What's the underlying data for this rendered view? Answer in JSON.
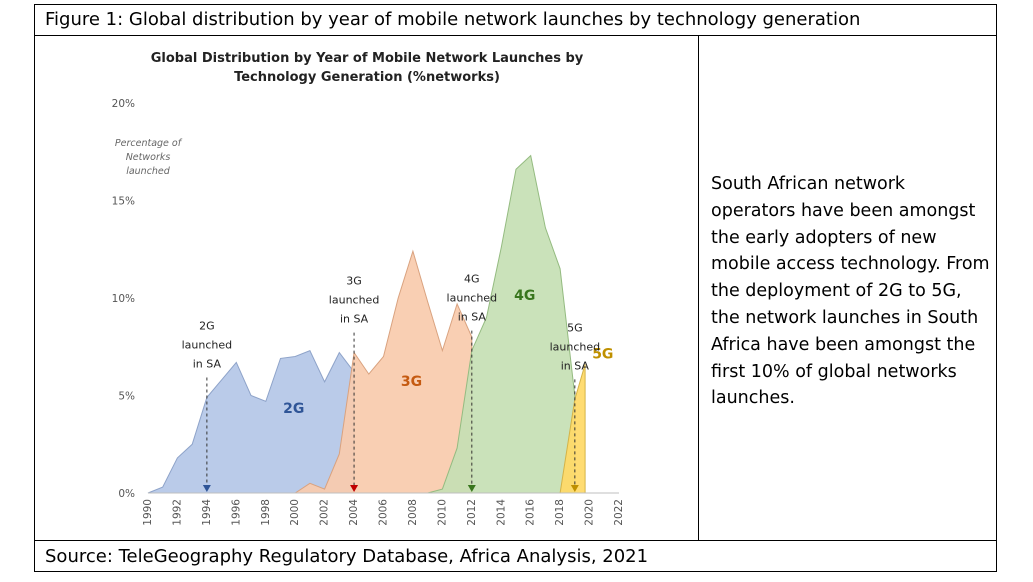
{
  "figure_title": "Figure 1: Global distribution by year of mobile network launches by technology generation",
  "source": "Source: TeleGeography Regulatory Database, Africa Analysis, 2021",
  "side_text": "South African network operators have been amongst the early adopters of new mobile access technology. From the deployment of 2G to 5G, the network launches in South Africa have been amongst the first 10% of global networks launches.",
  "chart_data": {
    "type": "area",
    "title": "Global Distribution by Year of Mobile Network Launches by Technology Generation (%networks)",
    "title_lines": [
      "Global Distribution by Year of Mobile Network Launches by",
      "Technology Generation (%networks)"
    ],
    "ylabel_lines": [
      "Percentage of",
      "Networks",
      "launched"
    ],
    "ylim": [
      0,
      20
    ],
    "yticks": [
      0,
      5,
      10,
      15,
      20
    ],
    "ytick_labels": [
      "0%",
      "5%",
      "10%",
      "15%",
      "20%"
    ],
    "xlim": [
      1990,
      2022
    ],
    "xticks": [
      1990,
      1992,
      1994,
      1996,
      1998,
      2000,
      2002,
      2004,
      2006,
      2008,
      2010,
      2012,
      2014,
      2016,
      2018,
      2020,
      2022
    ],
    "grid": false,
    "legend": "none",
    "series": [
      {
        "name": "2G",
        "color": "#b4c7e7",
        "stroke": "#8ea3c9",
        "label_color": "#2f5597",
        "label_at": [
          1999.9,
          4.1
        ],
        "x": [
          1990,
          1991,
          1992,
          1993,
          1994,
          1995,
          1996,
          1997,
          1998,
          1999,
          2000,
          2001,
          2002,
          2003,
          2004
        ],
        "y": [
          0,
          0.3,
          1.8,
          2.5,
          4.9,
          5.8,
          6.7,
          5.0,
          4.7,
          6.9,
          7.0,
          7.3,
          5.7,
          7.2,
          6.2
        ]
      },
      {
        "name": "3G",
        "color": "#f8cbad",
        "stroke": "#d9a27f",
        "label_color": "#c55a11",
        "label_at": [
          2007.9,
          5.5
        ],
        "x": [
          2000,
          2001,
          2002,
          2003,
          2004,
          2005,
          2006,
          2007,
          2008,
          2009,
          2010,
          2011,
          2012
        ],
        "y": [
          0,
          0.5,
          0.2,
          2.0,
          7.2,
          6.1,
          7.0,
          10.0,
          12.4,
          9.8,
          7.3,
          9.7,
          8.0
        ]
      },
      {
        "name": "4G",
        "color": "#c5e0b4",
        "stroke": "#94bb80",
        "label_color": "#38761d",
        "label_at": [
          2015.6,
          9.9
        ],
        "x": [
          2009,
          2010,
          2011,
          2012,
          2013,
          2014,
          2015,
          2016,
          2017,
          2018,
          2019
        ],
        "y": [
          0,
          0.2,
          2.3,
          7.3,
          9.0,
          12.6,
          16.6,
          17.3,
          13.6,
          11.5,
          5.0
        ]
      },
      {
        "name": "5G",
        "color": "#ffd966",
        "stroke": "#d4b348",
        "label_color": "#bf9000",
        "label_at": [
          2020.9,
          6.9
        ],
        "x": [
          2018,
          2019,
          2019.7,
          2019.7
        ],
        "y": [
          0,
          4.8,
          6.6,
          0
        ]
      }
    ],
    "annotations": [
      {
        "name": "2G-sa",
        "lines": [
          "2G",
          "launched",
          "in SA"
        ],
        "x": 1994,
        "color": "#2f5597"
      },
      {
        "name": "3G-sa",
        "lines": [
          "3G",
          "launched",
          "in SA"
        ],
        "x": 2004,
        "color": "#c00000"
      },
      {
        "name": "4G-sa",
        "lines": [
          "4G",
          "launched",
          "in SA"
        ],
        "x": 2012,
        "color": "#38761d"
      },
      {
        "name": "5G-sa",
        "lines": [
          "5G",
          "launched",
          "in SA"
        ],
        "x": 2019,
        "color": "#bf9000"
      }
    ]
  }
}
